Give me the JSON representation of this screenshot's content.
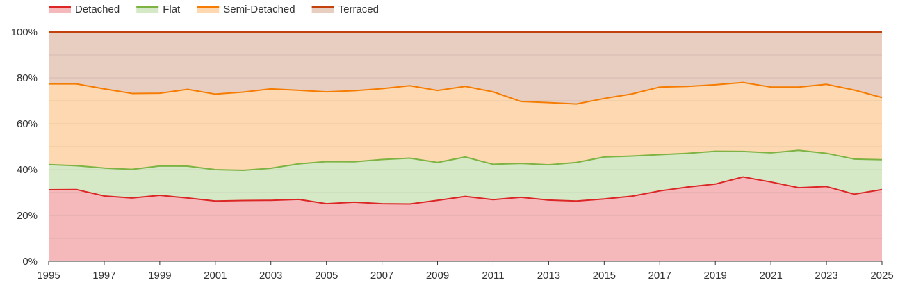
{
  "chart_data": {
    "type": "area",
    "stacked": true,
    "percent": true,
    "x": [
      1995,
      1996,
      1997,
      1998,
      1999,
      2000,
      2001,
      2002,
      2003,
      2004,
      2005,
      2006,
      2007,
      2008,
      2009,
      2010,
      2011,
      2012,
      2013,
      2014,
      2015,
      2016,
      2017,
      2018,
      2019,
      2020,
      2021,
      2022,
      2023,
      2024,
      2025
    ],
    "x_tick_labels": [
      "1995",
      "1997",
      "1999",
      "2001",
      "2003",
      "2005",
      "2007",
      "2009",
      "2011",
      "2013",
      "2015",
      "2017",
      "2019",
      "2021",
      "2023",
      "2025"
    ],
    "y_tick_labels": [
      "0%",
      "20%",
      "40%",
      "60%",
      "80%",
      "100%"
    ],
    "ylim": [
      0,
      100
    ],
    "grid": true,
    "legend_position": "top-left",
    "series": [
      {
        "name": "Detached",
        "line_color": "#dc2626",
        "fill_color": "#f5b9bb",
        "values": [
          31.2,
          31.3,
          28.5,
          27.6,
          28.8,
          27.6,
          26.3,
          26.5,
          26.6,
          27.0,
          25.1,
          25.8,
          25.1,
          25.0,
          26.6,
          28.3,
          26.9,
          27.9,
          26.7,
          26.3,
          27.2,
          28.4,
          30.7,
          32.4,
          33.7,
          36.8,
          34.6,
          32.1,
          32.6,
          29.3,
          31.3
        ]
      },
      {
        "name": "Flat",
        "line_color": "#7cb342",
        "fill_color": "#d6e9c7",
        "values": [
          11.0,
          10.4,
          12.2,
          12.5,
          12.8,
          13.9,
          13.7,
          13.2,
          14.0,
          15.5,
          18.4,
          17.6,
          19.3,
          20.0,
          16.5,
          17.2,
          15.4,
          14.8,
          15.4,
          16.8,
          18.3,
          17.5,
          15.8,
          14.7,
          14.3,
          11.1,
          12.7,
          16.3,
          14.5,
          15.3,
          13.0
        ]
      },
      {
        "name": "Semi-Detached",
        "line_color": "#f57c00",
        "fill_color": "#fed8b1",
        "values": [
          35.2,
          35.7,
          34.5,
          33.1,
          31.7,
          33.5,
          32.9,
          34.1,
          34.6,
          32.1,
          30.4,
          31.0,
          30.9,
          31.6,
          31.4,
          30.8,
          31.6,
          27.0,
          27.1,
          25.5,
          25.5,
          27.1,
          29.5,
          29.2,
          29.0,
          30.1,
          28.7,
          27.6,
          30.1,
          30.1,
          27.1
        ]
      },
      {
        "name": "Terraced",
        "line_color": "#c2410c",
        "fill_color": "#e8cdc1",
        "values": [
          22.6,
          22.6,
          24.8,
          26.8,
          26.7,
          25.0,
          27.1,
          26.2,
          24.8,
          25.4,
          26.1,
          25.6,
          24.7,
          23.4,
          25.5,
          23.7,
          26.1,
          30.3,
          30.8,
          31.4,
          29.0,
          27.0,
          24.0,
          23.7,
          23.0,
          22.0,
          24.0,
          24.0,
          22.8,
          25.3,
          28.6
        ]
      }
    ]
  }
}
